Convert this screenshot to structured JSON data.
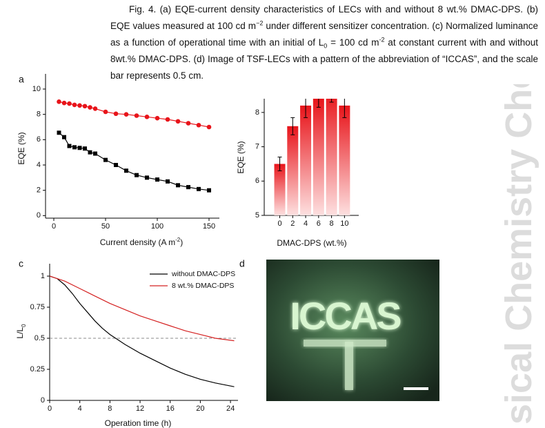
{
  "caption": [
    "Fig. 4. (a) EQE-current density characteristics of LECs with and without 8 wt.% DMAC-DPS. (b) EQE values measured at 100 cd m",
    {
      "sup": "−2"
    },
    " under different sensitizer concentration. (c) Normalized luminance as a function of operational time with an initial of L",
    {
      "sub": "0"
    },
    " = 100 cd m",
    {
      "sup": "-2"
    },
    " at constant current with and without 8wt.% DMAC-DPS. (d) Image of TSF-LECs with a pattern of the abbreviation of “ICCAS”, and the scale bar represents 0.5 cm."
  ],
  "watermark": "sical Chemistry Che",
  "chart_data": [
    {
      "type": "line",
      "panel_label": "a",
      "x_label": [
        "Current density (A m",
        {
          "sup": "-2"
        },
        ")"
      ],
      "y_label": "EQE (%)",
      "x": [
        5,
        10,
        15,
        20,
        25,
        30,
        35,
        40,
        50,
        60,
        70,
        80,
        90,
        100,
        110,
        120,
        130,
        140,
        150
      ],
      "series": [
        {
          "color": "#000000",
          "marker": "square",
          "values": [
            6.55,
            6.2,
            5.5,
            5.4,
            5.35,
            5.3,
            5.0,
            4.9,
            4.4,
            4.0,
            3.55,
            3.2,
            3.0,
            2.85,
            2.7,
            2.4,
            2.25,
            2.1,
            2.0
          ]
        },
        {
          "color": "#e8141a",
          "marker": "circle",
          "values": [
            9.0,
            8.9,
            8.85,
            8.75,
            8.7,
            8.65,
            8.55,
            8.45,
            8.2,
            8.05,
            8.0,
            7.9,
            7.8,
            7.7,
            7.6,
            7.45,
            7.3,
            7.15,
            7.0
          ]
        }
      ],
      "xlim": [
        -8,
        160
      ],
      "xticks": [
        0,
        50,
        100,
        150
      ],
      "ylim": [
        -0.2,
        11.2
      ],
      "yticks": [
        0,
        2,
        4,
        6,
        8,
        10
      ]
    },
    {
      "type": "bar",
      "x_label": "DMAC-DPS (wt.%)",
      "y_label": "EQE (%)",
      "x": [
        0,
        2,
        4,
        6,
        8,
        10
      ],
      "values": [
        6.5,
        7.6,
        8.2,
        8.4,
        8.6,
        8.2
      ],
      "errors": [
        0.2,
        0.25,
        0.35,
        0.25,
        0.3,
        0.35
      ],
      "color": "#e8141a",
      "xlim": [
        -2.4,
        12.2
      ],
      "xticks": [
        0,
        2,
        4,
        6,
        8,
        10
      ],
      "ylim": [
        5,
        8.4
      ],
      "yticks": [
        5,
        6,
        7,
        8
      ]
    },
    {
      "type": "line",
      "panel_label": "c",
      "x_label": "Operation time (h)",
      "y_label": [
        "L/L",
        {
          "sub": "0"
        }
      ],
      "series": [
        {
          "name": "without  DMAC-DPS",
          "color": "#000000",
          "x": [
            0,
            1,
            2,
            3,
            4,
            5,
            6,
            7,
            8,
            9,
            10,
            12,
            14,
            16,
            18,
            20,
            22,
            24.5
          ],
          "values": [
            1,
            0.98,
            0.93,
            0.86,
            0.78,
            0.71,
            0.64,
            0.58,
            0.53,
            0.49,
            0.45,
            0.38,
            0.32,
            0.26,
            0.21,
            0.17,
            0.14,
            0.11
          ]
        },
        {
          "name": "8 wt.% DMAC-DPS",
          "color": "#d42020",
          "x": [
            0,
            1,
            2,
            4,
            6,
            8,
            10,
            12,
            14,
            16,
            18,
            20,
            22,
            24.5
          ],
          "values": [
            1,
            0.98,
            0.96,
            0.9,
            0.84,
            0.78,
            0.73,
            0.68,
            0.64,
            0.6,
            0.56,
            0.53,
            0.5,
            0.48
          ]
        }
      ],
      "reference_line": 0.5,
      "legend": "upper right",
      "xlim": [
        0,
        25
      ],
      "xticks": [
        0,
        4,
        8,
        12,
        16,
        20,
        24
      ],
      "ylim": [
        0,
        1.1
      ],
      "yticks": [
        0,
        0.25,
        0.5,
        0.75,
        1
      ]
    }
  ],
  "photo": {
    "panel_label": "d",
    "image_text": "ICCAS"
  }
}
